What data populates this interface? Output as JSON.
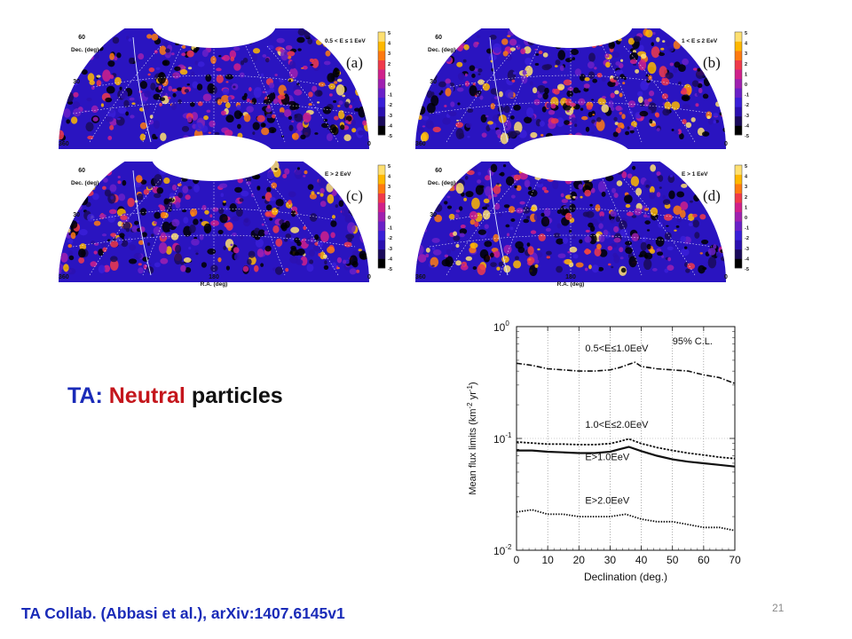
{
  "slide": {
    "title_prefix": "TA: ",
    "title_highlight": "Neutral",
    "title_suffix": " particles",
    "citation": "TA Collab. (Abbasi et al.), arXiv:1407.6145v1",
    "page_number": "21",
    "colors": {
      "title_blue": "#1a2bb8",
      "title_red": "#c4161c",
      "citation_blue": "#1a2bb8"
    }
  },
  "sky_maps": [
    {
      "id": "a",
      "tag": "(a)",
      "energy_label": "0.5 < E ≤ 1 EeV"
    },
    {
      "id": "b",
      "tag": "(b)",
      "energy_label": "1 < E ≤ 2 EeV"
    },
    {
      "id": "c",
      "tag": "(c)",
      "energy_label": "E > 2 EeV"
    },
    {
      "id": "d",
      "tag": "(d)",
      "energy_label": "E > 1 EeV"
    }
  ],
  "sky_map_axes": {
    "ylabel": "Dec. (deg)",
    "xlabel": "R.A. (deg)",
    "ra_ticks": [
      "360",
      "180",
      "0"
    ],
    "dec_ticks": [
      "60",
      "30"
    ],
    "colorbar_ticks": [
      "5",
      "4",
      "3",
      "2",
      "1",
      "0",
      "-1",
      "-2",
      "-3",
      "-4",
      "-5"
    ],
    "colorbar_range": [
      -5,
      5
    ],
    "colormap": [
      "#000000",
      "#1a0a5a",
      "#2b10b0",
      "#3a1fd8",
      "#6a20c8",
      "#a020b0",
      "#d0208a",
      "#f03a4a",
      "#ff7a10",
      "#ffb800",
      "#ffe070"
    ]
  },
  "chart_data": {
    "type": "line",
    "xlabel": "Declination (deg.)",
    "ylabel": "Mean flux limits (km-2 yr-1)",
    "ylabel_parts": [
      "Mean flux limits (km",
      "-2",
      " yr",
      "-1",
      ")"
    ],
    "xlim": [
      0,
      70
    ],
    "ylim": [
      0.01,
      1
    ],
    "yscale": "log",
    "x_ticks": [
      0,
      10,
      20,
      30,
      40,
      50,
      60,
      70
    ],
    "y_ticks": [
      {
        "base": "10",
        "exp": "0",
        "value": 1
      },
      {
        "base": "10",
        "exp": "-1",
        "value": 0.1
      },
      {
        "base": "10",
        "exp": "-2",
        "value": 0.01
      }
    ],
    "grid": "x-dotted",
    "annotation": "95% C.L.",
    "series": [
      {
        "name": "0.5<E≤1.0EeV",
        "style": "dash-dot",
        "x": [
          0,
          5,
          10,
          15,
          20,
          25,
          30,
          33,
          36,
          38,
          40,
          45,
          50,
          55,
          60,
          65,
          70
        ],
        "y": [
          0.47,
          0.45,
          0.42,
          0.41,
          0.4,
          0.4,
          0.41,
          0.43,
          0.46,
          0.48,
          0.44,
          0.42,
          0.41,
          0.4,
          0.37,
          0.35,
          0.31
        ]
      },
      {
        "name": "1.0<E≤2.0EeV",
        "style": "dashed",
        "x": [
          0,
          5,
          10,
          15,
          20,
          25,
          30,
          33,
          36,
          40,
          45,
          50,
          55,
          60,
          65,
          70
        ],
        "y": [
          0.093,
          0.091,
          0.089,
          0.089,
          0.088,
          0.088,
          0.09,
          0.094,
          0.099,
          0.09,
          0.083,
          0.078,
          0.074,
          0.071,
          0.068,
          0.066
        ]
      },
      {
        "name": "E>1.0EeV",
        "style": "solid",
        "x": [
          0,
          5,
          10,
          15,
          20,
          25,
          30,
          33,
          36,
          40,
          45,
          50,
          55,
          60,
          65,
          70
        ],
        "y": [
          0.078,
          0.078,
          0.076,
          0.075,
          0.074,
          0.074,
          0.076,
          0.08,
          0.084,
          0.077,
          0.07,
          0.065,
          0.062,
          0.06,
          0.058,
          0.056
        ]
      },
      {
        "name": "E>2.0EeV",
        "style": "dotted",
        "x": [
          0,
          5,
          10,
          15,
          20,
          25,
          30,
          35,
          40,
          45,
          50,
          55,
          60,
          65,
          70
        ],
        "y": [
          0.022,
          0.023,
          0.021,
          0.021,
          0.02,
          0.02,
          0.02,
          0.021,
          0.019,
          0.018,
          0.018,
          0.017,
          0.016,
          0.016,
          0.015
        ]
      }
    ]
  }
}
